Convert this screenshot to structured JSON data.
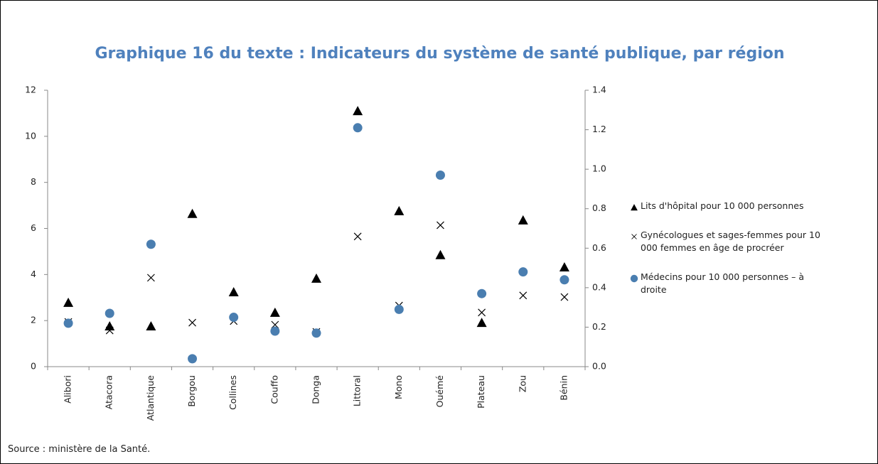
{
  "chart_data": {
    "type": "scatter",
    "title": "Graphique 16 du texte : Indicateurs du système de santé publique, par région",
    "categories": [
      "Alibori",
      "Atacora",
      "Atlantique",
      "Borgou",
      "Collines",
      "Couffo",
      "Donga",
      "Littoral",
      "Mono",
      "Ouémé",
      "Plateau",
      "Zou",
      "Bénin"
    ],
    "series": [
      {
        "name": "Lits d'hôpital pour 10 000 personnes",
        "color": "#000000",
        "marker": "triangle",
        "values": [
          2.78,
          1.76,
          1.76,
          6.64,
          3.24,
          2.35,
          3.83,
          11.1,
          6.76,
          4.85,
          1.91,
          6.36,
          4.32
        ]
      },
      {
        "name": "Gynécologues et sages-femmes pour 10 000 femmes en âge de procréer",
        "color": "#000000",
        "marker": "cross",
        "values": [
          1.94,
          1.57,
          3.86,
          1.91,
          1.98,
          1.82,
          1.51,
          5.65,
          2.65,
          6.14,
          2.35,
          3.09,
          3.02
        ]
      },
      {
        "name": "Médecins pour 10 000 personnes – à droite",
        "color": "#4a7eb0",
        "marker": "circle",
        "axis": "y2",
        "values": [
          0.22,
          0.27,
          0.62,
          0.04,
          0.25,
          0.18,
          0.17,
          1.21,
          0.29,
          0.97,
          0.37,
          0.48,
          0.44
        ]
      }
    ],
    "ylim": [
      0,
      12
    ],
    "yticks": [
      0,
      2,
      4,
      6,
      8,
      10,
      12
    ],
    "y2lim": [
      0,
      1.4
    ],
    "y2ticks": [
      {
        "value": 0,
        "label": "0.0"
      },
      0.2,
      0.4,
      0.6,
      0.8,
      {
        "value": 1,
        "label": "1.0"
      },
      1.2,
      1.4
    ],
    "legend": "right"
  },
  "source": "Source : ministère de la Santé."
}
